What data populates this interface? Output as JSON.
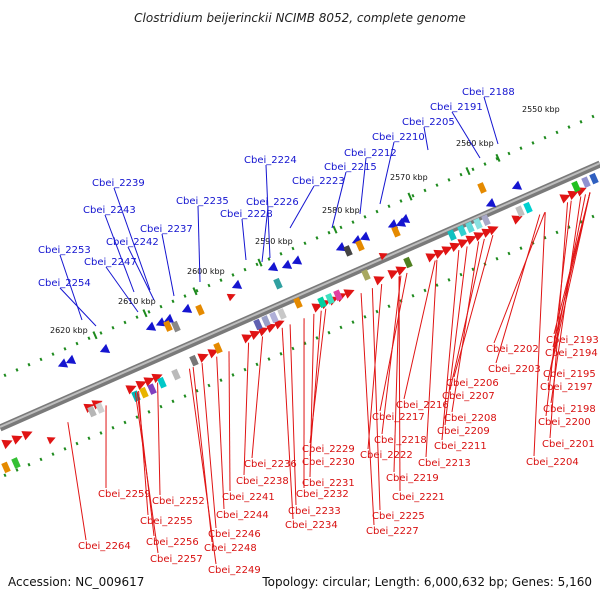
{
  "title": "Clostridium beijerinckii NCIMB 8052, complete genome",
  "footer": {
    "accession": "Accession: NC_009617",
    "summary": "Topology: circular; Length: 6,000,632 bp; Genes: 5,160"
  },
  "scale_labels": [
    "2550 kbp",
    "2560 kbp",
    "2570 kbp",
    "2580 kbp",
    "2590 kbp",
    "2600 kbp",
    "2610 kbp",
    "2620 kbp"
  ],
  "upper_genes": [
    "Cbei_2188",
    "Cbei_2191",
    "Cbei_2205",
    "Cbei_2210",
    "Cbei_2212",
    "Cbei_2215",
    "Cbei_2223",
    "Cbei_2224",
    "Cbei_2226",
    "Cbei_2228",
    "Cbei_2235",
    "Cbei_2239",
    "Cbei_2243",
    "Cbei_2237",
    "Cbei_2242",
    "Cbei_2247",
    "Cbei_2253",
    "Cbei_2254"
  ],
  "lower_genes": [
    "Cbei_2193",
    "Cbei_2194",
    "Cbei_2195",
    "Cbei_2197",
    "Cbei_2198",
    "Cbei_2200",
    "Cbei_2201",
    "Cbei_2202",
    "Cbei_2203",
    "Cbei_2204",
    "Cbei_2206",
    "Cbei_2207",
    "Cbei_2208",
    "Cbei_2209",
    "Cbei_2211",
    "Cbei_2213",
    "Cbei_2216",
    "Cbei_2217",
    "Cbei_2218",
    "Cbei_2219",
    "Cbei_2221",
    "Cbei_2222",
    "Cbei_2225",
    "Cbei_2227",
    "Cbei_2229",
    "Cbei_2230",
    "Cbei_2231",
    "Cbei_2232",
    "Cbei_2233",
    "Cbei_2234",
    "Cbei_2236",
    "Cbei_2238",
    "Cbei_2241",
    "Cbei_2244",
    "Cbei_2246",
    "Cbei_2248",
    "Cbei_2249",
    "Cbei_2252",
    "Cbei_2255",
    "Cbei_2256",
    "Cbei_2257",
    "Cbei_2259",
    "Cbei_2264"
  ]
}
